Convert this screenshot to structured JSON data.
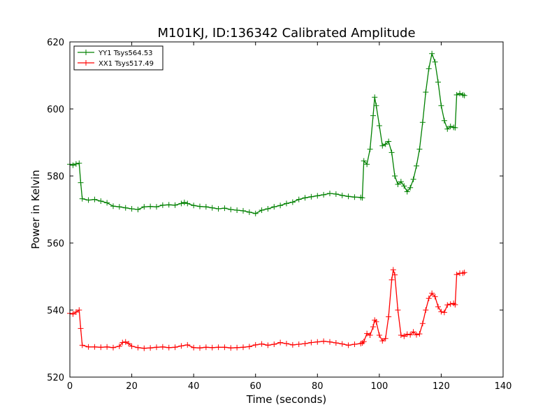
{
  "chart_data": {
    "type": "line",
    "title": "M101KJ, ID:136342 Calibrated Amplitude",
    "xlabel": "Time (seconds)",
    "ylabel": "Power in Kelvin",
    "xlim": [
      0,
      140
    ],
    "ylim": [
      520,
      620
    ],
    "xticks": [
      0,
      20,
      40,
      60,
      80,
      100,
      120,
      140
    ],
    "yticks": [
      520,
      540,
      560,
      580,
      600,
      620
    ],
    "grid": false,
    "legend": "top-left",
    "marker": "+",
    "series": [
      {
        "name": "YY1 Tsys564.53",
        "color": "#008000",
        "points": [
          [
            0,
            583.5
          ],
          [
            1,
            583.2
          ],
          [
            2,
            583.6
          ],
          [
            3,
            583.8
          ],
          [
            3.5,
            578.0
          ],
          [
            4,
            573.2
          ],
          [
            6,
            572.8
          ],
          [
            8,
            573.0
          ],
          [
            10,
            572.5
          ],
          [
            12,
            572.0
          ],
          [
            14,
            571.0
          ],
          [
            16,
            570.8
          ],
          [
            18,
            570.5
          ],
          [
            20,
            570.2
          ],
          [
            22,
            570.0
          ],
          [
            24,
            570.8
          ],
          [
            26,
            570.9
          ],
          [
            28,
            570.8
          ],
          [
            30,
            571.3
          ],
          [
            32,
            571.4
          ],
          [
            34,
            571.3
          ],
          [
            36,
            571.8
          ],
          [
            37,
            572.1
          ],
          [
            38,
            571.8
          ],
          [
            40,
            571.2
          ],
          [
            42,
            570.9
          ],
          [
            44,
            570.8
          ],
          [
            46,
            570.5
          ],
          [
            48,
            570.2
          ],
          [
            50,
            570.4
          ],
          [
            52,
            570.0
          ],
          [
            54,
            569.8
          ],
          [
            56,
            569.6
          ],
          [
            58,
            569.2
          ],
          [
            60,
            568.8
          ],
          [
            62,
            569.8
          ],
          [
            64,
            570.2
          ],
          [
            66,
            570.8
          ],
          [
            68,
            571.2
          ],
          [
            70,
            571.8
          ],
          [
            72,
            572.2
          ],
          [
            74,
            573.0
          ],
          [
            76,
            573.5
          ],
          [
            78,
            573.8
          ],
          [
            80,
            574.1
          ],
          [
            82,
            574.4
          ],
          [
            84,
            574.8
          ],
          [
            86,
            574.6
          ],
          [
            88,
            574.2
          ],
          [
            90,
            573.9
          ],
          [
            92,
            573.7
          ],
          [
            94,
            573.6
          ],
          [
            94.5,
            573.5
          ],
          [
            95,
            584.5
          ],
          [
            96,
            583.5
          ],
          [
            97,
            588.0
          ],
          [
            98,
            598.0
          ],
          [
            98.5,
            603.5
          ],
          [
            99,
            601.0
          ],
          [
            100,
            595.0
          ],
          [
            101,
            589.0
          ],
          [
            102,
            589.5
          ],
          [
            103,
            590.3
          ],
          [
            104,
            587.0
          ],
          [
            105,
            580.0
          ],
          [
            106,
            577.5
          ],
          [
            107,
            578.3
          ],
          [
            108,
            577.0
          ],
          [
            109,
            575.3
          ],
          [
            110,
            576.5
          ],
          [
            111,
            579.0
          ],
          [
            112,
            583.0
          ],
          [
            113,
            588.0
          ],
          [
            114,
            596.0
          ],
          [
            115,
            605.0
          ],
          [
            116,
            612.0
          ],
          [
            117,
            616.5
          ],
          [
            118,
            614.0
          ],
          [
            119,
            608.0
          ],
          [
            120,
            601.0
          ],
          [
            121,
            596.5
          ],
          [
            122,
            594.0
          ],
          [
            123,
            594.8
          ],
          [
            124,
            594.5
          ],
          [
            124.5,
            594.4
          ],
          [
            125,
            604.2
          ],
          [
            126,
            604.6
          ],
          [
            127,
            604.2
          ],
          [
            127.5,
            604.0
          ]
        ]
      },
      {
        "name": "XX1 Tsys517.49",
        "color": "#ff0000",
        "points": [
          [
            0,
            539.0
          ],
          [
            1,
            538.8
          ],
          [
            2,
            539.4
          ],
          [
            3,
            540.0
          ],
          [
            3.5,
            534.5
          ],
          [
            4,
            529.5
          ],
          [
            6,
            529.0
          ],
          [
            8,
            529.0
          ],
          [
            10,
            528.9
          ],
          [
            12,
            529.0
          ],
          [
            14,
            528.8
          ],
          [
            16,
            529.2
          ],
          [
            17,
            530.3
          ],
          [
            18,
            530.5
          ],
          [
            19,
            530.0
          ],
          [
            20,
            529.2
          ],
          [
            22,
            528.8
          ],
          [
            24,
            528.6
          ],
          [
            26,
            528.7
          ],
          [
            28,
            528.9
          ],
          [
            30,
            529.0
          ],
          [
            32,
            528.8
          ],
          [
            34,
            528.9
          ],
          [
            36,
            529.3
          ],
          [
            38,
            529.6
          ],
          [
            40,
            528.8
          ],
          [
            42,
            528.7
          ],
          [
            44,
            528.9
          ],
          [
            46,
            528.8
          ],
          [
            48,
            528.9
          ],
          [
            50,
            528.9
          ],
          [
            52,
            528.7
          ],
          [
            54,
            528.8
          ],
          [
            56,
            528.9
          ],
          [
            58,
            529.1
          ],
          [
            60,
            529.6
          ],
          [
            62,
            529.9
          ],
          [
            64,
            529.5
          ],
          [
            66,
            529.8
          ],
          [
            68,
            530.3
          ],
          [
            70,
            530.0
          ],
          [
            72,
            529.6
          ],
          [
            74,
            529.8
          ],
          [
            76,
            530.0
          ],
          [
            78,
            530.3
          ],
          [
            80,
            530.5
          ],
          [
            82,
            530.7
          ],
          [
            84,
            530.5
          ],
          [
            86,
            530.2
          ],
          [
            88,
            529.9
          ],
          [
            90,
            529.5
          ],
          [
            92,
            529.8
          ],
          [
            94,
            530.0
          ],
          [
            94.5,
            530.2
          ],
          [
            95,
            530.6
          ],
          [
            96,
            533.0
          ],
          [
            97,
            532.5
          ],
          [
            98,
            535.0
          ],
          [
            98.5,
            537.0
          ],
          [
            99,
            536.5
          ],
          [
            100,
            532.5
          ],
          [
            101,
            530.8
          ],
          [
            102,
            531.5
          ],
          [
            103,
            538.0
          ],
          [
            104,
            549.0
          ],
          [
            104.5,
            552.0
          ],
          [
            105,
            550.5
          ],
          [
            106,
            540.0
          ],
          [
            107,
            532.5
          ],
          [
            108,
            532.2
          ],
          [
            109,
            532.8
          ],
          [
            110,
            532.6
          ],
          [
            111,
            533.5
          ],
          [
            112,
            532.6
          ],
          [
            113,
            532.9
          ],
          [
            114,
            536.0
          ],
          [
            115,
            540.0
          ],
          [
            116,
            543.5
          ],
          [
            117,
            545.0
          ],
          [
            118,
            544.0
          ],
          [
            119,
            541.0
          ],
          [
            120,
            539.5
          ],
          [
            121,
            539.3
          ],
          [
            122,
            541.5
          ],
          [
            123,
            541.8
          ],
          [
            124,
            542.0
          ],
          [
            124.5,
            541.6
          ],
          [
            125,
            550.6
          ],
          [
            126,
            551.0
          ],
          [
            127,
            551.0
          ],
          [
            127.5,
            551.2
          ]
        ]
      }
    ]
  }
}
